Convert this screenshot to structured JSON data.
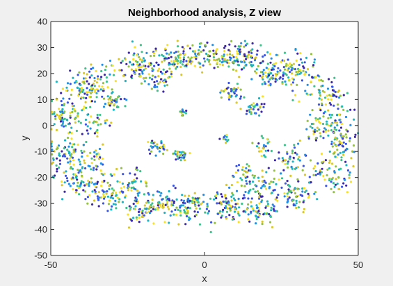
{
  "chart_data": {
    "type": "scatter",
    "title": "Neighborhood analysis, Z view",
    "xlabel": "x",
    "ylabel": "y",
    "xlim": [
      -50,
      50
    ],
    "ylim": [
      -50,
      40
    ],
    "xticks": [
      -50,
      0,
      50
    ],
    "yticks": [
      -50,
      -40,
      -30,
      -20,
      -10,
      0,
      10,
      20,
      30,
      40
    ],
    "grid": false,
    "legend": "none",
    "colormap": [
      "#3e26a8",
      "#3b54e8",
      "#1f8fea",
      "#19b5c3",
      "#3cc38a",
      "#93c23f",
      "#d9c82c",
      "#f9e21f"
    ],
    "background": "#f0f0f0",
    "axes_color": "#ffffff",
    "clusters": [
      {
        "x": -38,
        "y": 15,
        "sx": 3.2,
        "sy": 3.0,
        "n": 55
      },
      {
        "x": -30,
        "y": 10,
        "sx": 2.0,
        "sy": 2.0,
        "n": 40
      },
      {
        "x": -20,
        "y": 21,
        "sx": 3.0,
        "sy": 2.5,
        "n": 55
      },
      {
        "x": -14,
        "y": 17,
        "sx": 2.0,
        "sy": 2.0,
        "n": 30
      },
      {
        "x": -8,
        "y": 25,
        "sx": 3.0,
        "sy": 2.5,
        "n": 60
      },
      {
        "x": 2,
        "y": 27,
        "sx": 4.0,
        "sy": 2.5,
        "n": 70
      },
      {
        "x": 13,
        "y": 26,
        "sx": 3.0,
        "sy": 2.5,
        "n": 50
      },
      {
        "x": 21,
        "y": 19,
        "sx": 3.0,
        "sy": 2.5,
        "n": 55
      },
      {
        "x": 31,
        "y": 22,
        "sx": 3.0,
        "sy": 3.0,
        "n": 45
      },
      {
        "x": 40,
        "y": 12,
        "sx": 3.0,
        "sy": 3.0,
        "n": 40
      },
      {
        "x": 9,
        "y": 12,
        "sx": 1.8,
        "sy": 1.8,
        "n": 35
      },
      {
        "x": 16,
        "y": 7,
        "sx": 2.0,
        "sy": 1.8,
        "n": 35
      },
      {
        "x": -7,
        "y": 5,
        "sx": 0.8,
        "sy": 1.0,
        "n": 12
      },
      {
        "x": -46,
        "y": 3,
        "sx": 2.5,
        "sy": 3.0,
        "n": 35
      },
      {
        "x": -36,
        "y": 1,
        "sx": 2.5,
        "sy": 2.5,
        "n": 30
      },
      {
        "x": -45,
        "y": -10,
        "sx": 3.0,
        "sy": 3.0,
        "n": 35
      },
      {
        "x": -36,
        "y": -13,
        "sx": 2.5,
        "sy": 2.5,
        "n": 30
      },
      {
        "x": -15,
        "y": -8,
        "sx": 1.5,
        "sy": 1.5,
        "n": 30
      },
      {
        "x": -8,
        "y": -12,
        "sx": 1.5,
        "sy": 1.5,
        "n": 30
      },
      {
        "x": 7,
        "y": -5,
        "sx": 0.8,
        "sy": 1.0,
        "n": 10
      },
      {
        "x": 19,
        "y": -8,
        "sx": 1.5,
        "sy": 2.0,
        "n": 25
      },
      {
        "x": 28,
        "y": -12,
        "sx": 2.0,
        "sy": 2.5,
        "n": 45
      },
      {
        "x": 38,
        "y": -1,
        "sx": 3.0,
        "sy": 3.0,
        "n": 45
      },
      {
        "x": 45,
        "y": -5,
        "sx": 2.0,
        "sy": 3.0,
        "n": 30
      },
      {
        "x": 42,
        "y": -20,
        "sx": 3.0,
        "sy": 3.0,
        "n": 35
      },
      {
        "x": 30,
        "y": -27,
        "sx": 3.0,
        "sy": 3.0,
        "n": 45
      },
      {
        "x": 19,
        "y": -22,
        "sx": 3.0,
        "sy": 3.0,
        "n": 45
      },
      {
        "x": 13,
        "y": -18,
        "sx": 2.0,
        "sy": 2.0,
        "n": 30
      },
      {
        "x": 18,
        "y": -33,
        "sx": 3.0,
        "sy": 2.5,
        "n": 40
      },
      {
        "x": 7,
        "y": -29,
        "sx": 3.0,
        "sy": 2.5,
        "n": 65
      },
      {
        "x": -4,
        "y": -30,
        "sx": 3.0,
        "sy": 2.5,
        "n": 60
      },
      {
        "x": -14,
        "y": -29,
        "sx": 3.0,
        "sy": 3.0,
        "n": 55
      },
      {
        "x": -24,
        "y": -22,
        "sx": 3.0,
        "sy": 3.0,
        "n": 45
      },
      {
        "x": -32,
        "y": -27,
        "sx": 3.0,
        "sy": 3.0,
        "n": 45
      },
      {
        "x": -40,
        "y": -22,
        "sx": 3.0,
        "sy": 3.0,
        "n": 35
      },
      {
        "x": -21,
        "y": -33,
        "sx": 2.5,
        "sy": 2.5,
        "n": 30
      }
    ],
    "ring": {
      "cx": -2,
      "cy": -3,
      "rx": 46,
      "ry": 31,
      "spread": 4,
      "n": 650
    }
  }
}
